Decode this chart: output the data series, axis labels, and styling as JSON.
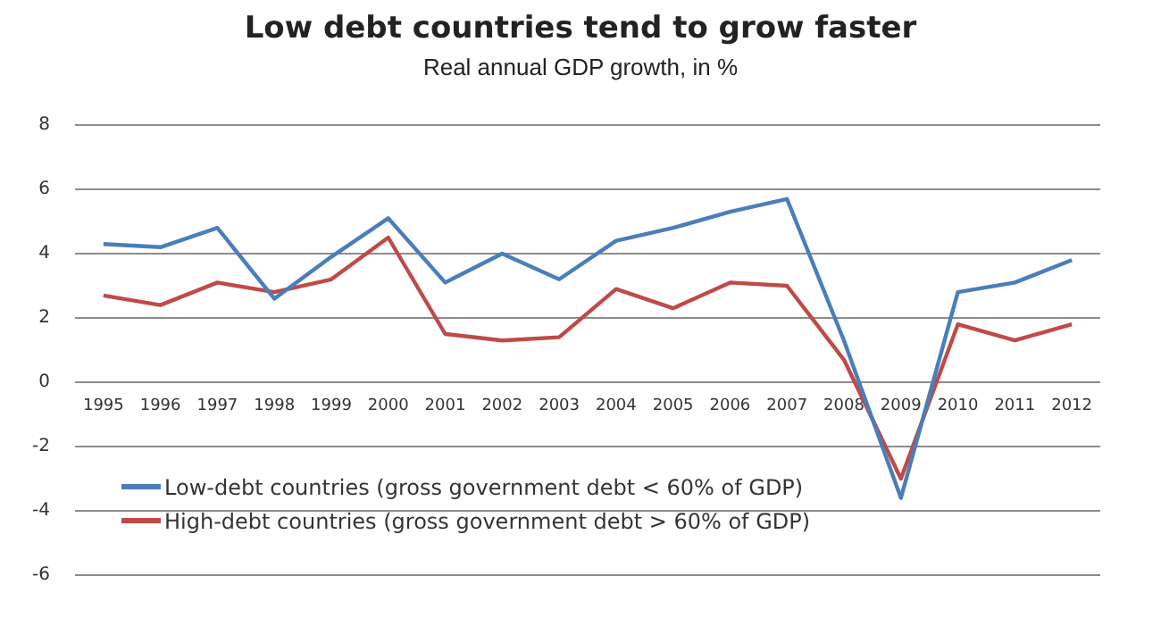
{
  "chart_data": {
    "type": "line",
    "title": "Low debt countries tend to grow faster",
    "subtitle": "Real annual GDP growth, in %",
    "categories": [
      "1995",
      "1996",
      "1997",
      "1998",
      "1999",
      "2000",
      "2001",
      "2002",
      "2003",
      "2004",
      "2005",
      "2006",
      "2007",
      "2008",
      "2009",
      "2010",
      "2011",
      "2012"
    ],
    "series": [
      {
        "name": "Low-debt countries (gross government debt < 60% of GDP)",
        "color": "#4a7ebb",
        "values": [
          4.3,
          4.2,
          4.8,
          2.6,
          3.9,
          5.1,
          3.1,
          4.0,
          3.2,
          4.4,
          4.8,
          5.3,
          5.7,
          1.3,
          -3.6,
          2.8,
          3.1,
          3.8
        ]
      },
      {
        "name": "High-debt countries (gross government debt > 60% of GDP)",
        "color": "#be4b48",
        "values": [
          2.7,
          2.4,
          3.1,
          2.8,
          3.2,
          4.5,
          1.5,
          1.3,
          1.4,
          2.9,
          2.3,
          3.1,
          3.0,
          0.7,
          -3.0,
          1.8,
          1.3,
          1.8
        ]
      }
    ],
    "ylim": [
      -6,
      8
    ],
    "yticks": [
      -6,
      -4,
      -2,
      0,
      2,
      4,
      6,
      8
    ],
    "grid": "y",
    "legend": "bottom left",
    "marker": "none",
    "line_style": "solid"
  }
}
